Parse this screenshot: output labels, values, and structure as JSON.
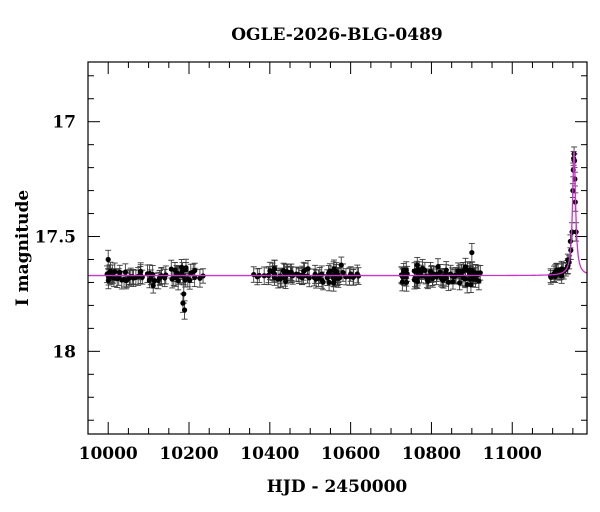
{
  "chart_data": {
    "type": "scatter",
    "title": "OGLE-2026-BLG-0489",
    "xlabel": "HJD - 2450000",
    "ylabel": "I magnitude",
    "xlim": [
      9950,
      11185
    ],
    "ylim": [
      18.36,
      16.74
    ],
    "y_inverted": true,
    "x_major_ticks": [
      10000,
      10200,
      10400,
      10600,
      10800,
      11000
    ],
    "x_minor_step": 50,
    "y_major_ticks": [
      17,
      17.5,
      18
    ],
    "y_minor_step": 0.1,
    "grid": false,
    "legend": "none",
    "colors": {
      "points": "#000000",
      "errorbars": "#3a3a3a",
      "model": "#cc33cc"
    },
    "model": {
      "baseline": 17.67,
      "peak_hjd": 11153,
      "peak_mag": 17.13,
      "width_days": 4.5
    },
    "observing_seasons": [
      {
        "range": [
          9995,
          10240
        ],
        "n_points": 70,
        "error": 0.035
      },
      {
        "range": [
          10360,
          10620
        ],
        "n_points": 75,
        "error": 0.035
      },
      {
        "range": [
          10725,
          10925
        ],
        "n_points": 90,
        "error": 0.035
      },
      {
        "range": [
          11090,
          11145
        ],
        "n_points": 20,
        "error": 0.03
      }
    ],
    "peak_points": [
      {
        "x": 11145,
        "y": 17.56,
        "err": 0.04
      },
      {
        "x": 11148,
        "y": 17.48,
        "err": 0.04
      },
      {
        "x": 11150,
        "y": 17.3,
        "err": 0.03
      },
      {
        "x": 11151,
        "y": 17.21,
        "err": 0.03
      },
      {
        "x": 11152,
        "y": 17.16,
        "err": 0.03
      },
      {
        "x": 11153,
        "y": 17.14,
        "err": 0.03
      },
      {
        "x": 11154,
        "y": 17.17,
        "err": 0.03
      },
      {
        "x": 11155,
        "y": 17.25,
        "err": 0.03
      },
      {
        "x": 11156,
        "y": 17.35,
        "err": 0.04
      },
      {
        "x": 11158,
        "y": 17.48,
        "err": 0.04
      }
    ],
    "notable_points": [
      {
        "x": 10185,
        "y": 17.79,
        "err": 0.04
      },
      {
        "x": 10187,
        "y": 17.75,
        "err": 0.04
      },
      {
        "x": 10189,
        "y": 17.82,
        "err": 0.04
      },
      {
        "x": 10000,
        "y": 17.6,
        "err": 0.04
      },
      {
        "x": 10900,
        "y": 17.57,
        "err": 0.04
      }
    ]
  }
}
